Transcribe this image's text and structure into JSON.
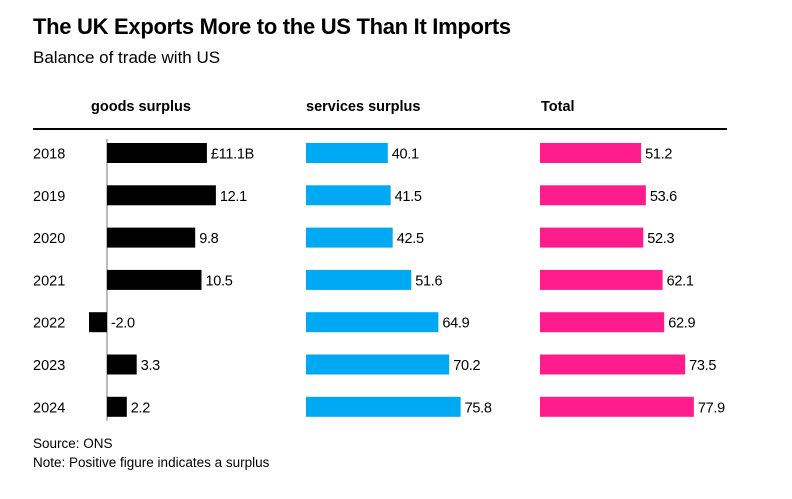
{
  "chart_data": {
    "type": "bar",
    "title": "The UK Exports More to the US Than It Imports",
    "subtitle": "Balance of trade with US",
    "categories": [
      "2018",
      "2019",
      "2020",
      "2021",
      "2022",
      "2023",
      "2024"
    ],
    "series": [
      {
        "name": "goods surplus",
        "color": "#000000",
        "values": [
          11.1,
          12.1,
          9.8,
          10.5,
          -2.0,
          3.3,
          2.2
        ],
        "labels": [
          "£11.1B",
          "12.1",
          "9.8",
          "10.5",
          "-2.0",
          "3.3",
          "2.2"
        ]
      },
      {
        "name": "services surplus",
        "color": "#00a9f4",
        "values": [
          40.1,
          41.5,
          42.5,
          51.6,
          64.9,
          70.2,
          75.8
        ],
        "labels": [
          "40.1",
          "41.5",
          "42.5",
          "51.6",
          "64.9",
          "70.2",
          "75.8"
        ]
      },
      {
        "name": "Total",
        "color": "#ff1d8e",
        "values": [
          51.2,
          53.6,
          52.3,
          62.1,
          62.9,
          73.5,
          77.9
        ],
        "labels": [
          "51.2",
          "53.6",
          "52.3",
          "62.1",
          "62.9",
          "73.5",
          "77.9"
        ]
      }
    ],
    "source": "Source: ONS",
    "note": "Note: Positive figure indicates a surplus"
  }
}
